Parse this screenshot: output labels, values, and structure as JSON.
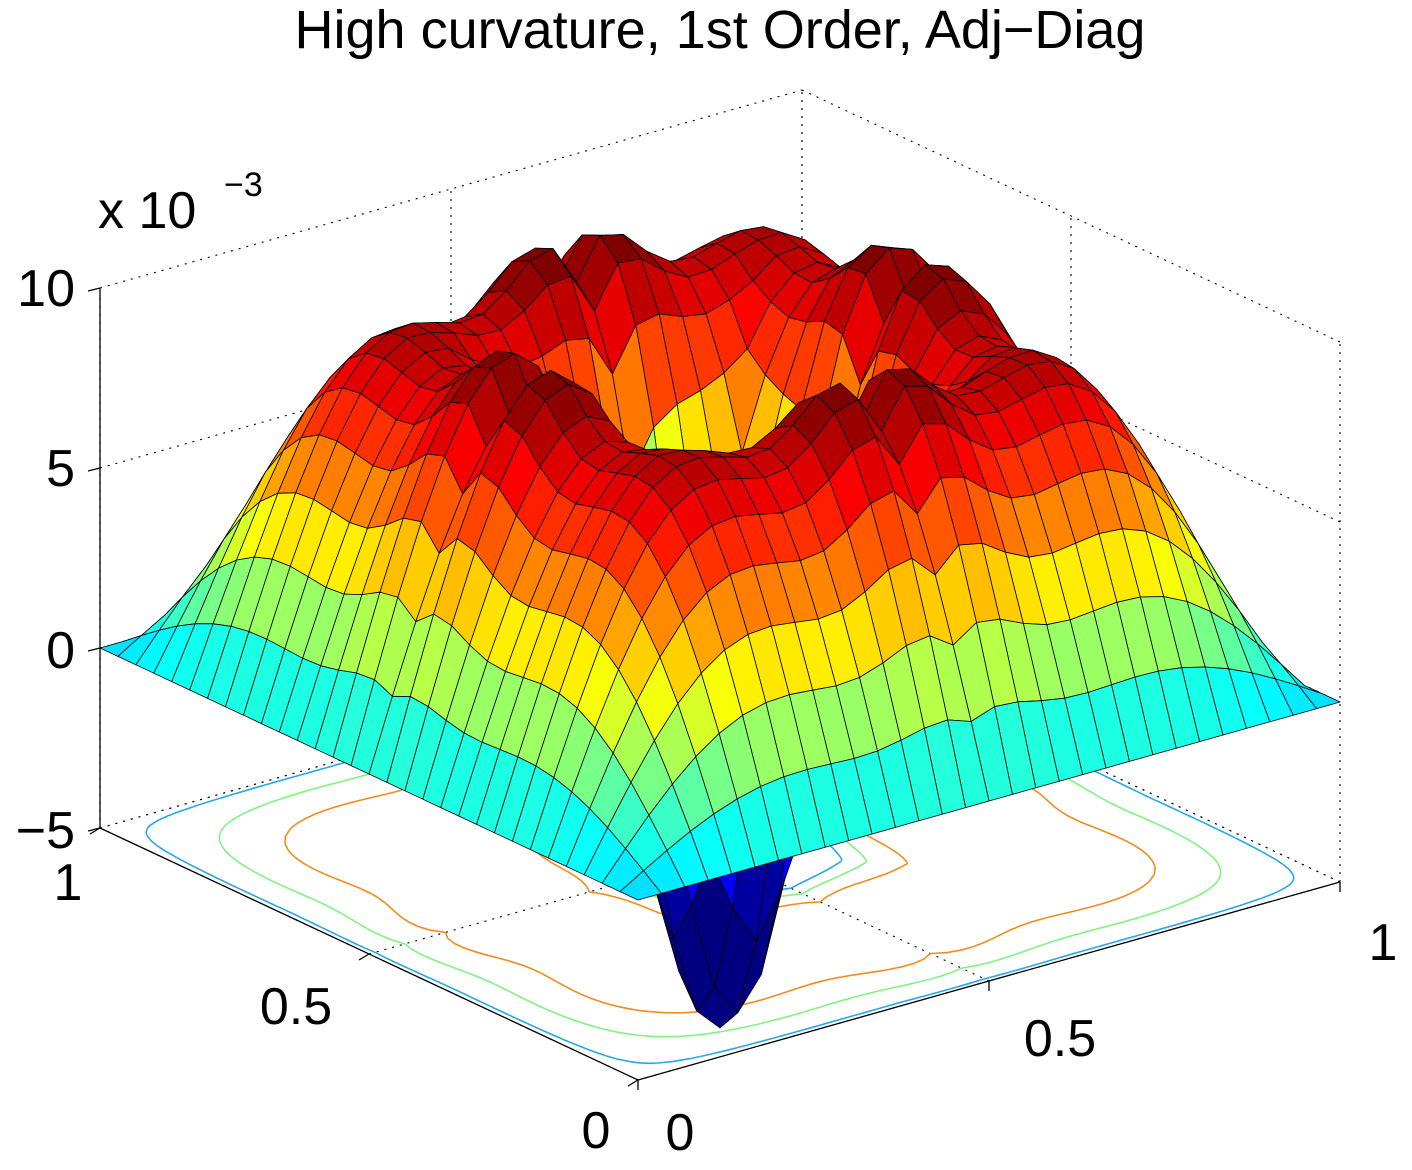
{
  "chart_data": {
    "type": "surface",
    "title": "High curvature, 1st Order, Adj−Diag",
    "xlabel": "",
    "ylabel": "",
    "zlabel": "",
    "z_exponent_label": "x 10",
    "z_exponent_power": "−3",
    "xlim": [
      0,
      1
    ],
    "ylim": [
      0,
      1
    ],
    "zlim": [
      -5,
      10
    ],
    "z_ticks": [
      "10",
      "5",
      "0",
      "−5"
    ],
    "x_ticks": [
      "0",
      "0.5",
      "1"
    ],
    "y_ticks": [
      "0",
      "0.5",
      "1"
    ],
    "grid": true,
    "colormap": "jet",
    "grid_resolution": 30,
    "surface": {
      "description_formula": "z = peak * sin(pi*4*dx) * sin(pi*4*dy) style cross-shaped ridges with deep trough at center (minimum near -5e-3 at center)",
      "z_min": -0.005,
      "z_max": 0.0098,
      "center": [
        0.5,
        0.5
      ]
    },
    "contour_levels": [
      {
        "level": 0.006,
        "color": "#f08c1e"
      },
      {
        "level": 0.003,
        "color": "#82f282"
      },
      {
        "level": 0.0005,
        "color": "#28a8e6"
      }
    ]
  }
}
